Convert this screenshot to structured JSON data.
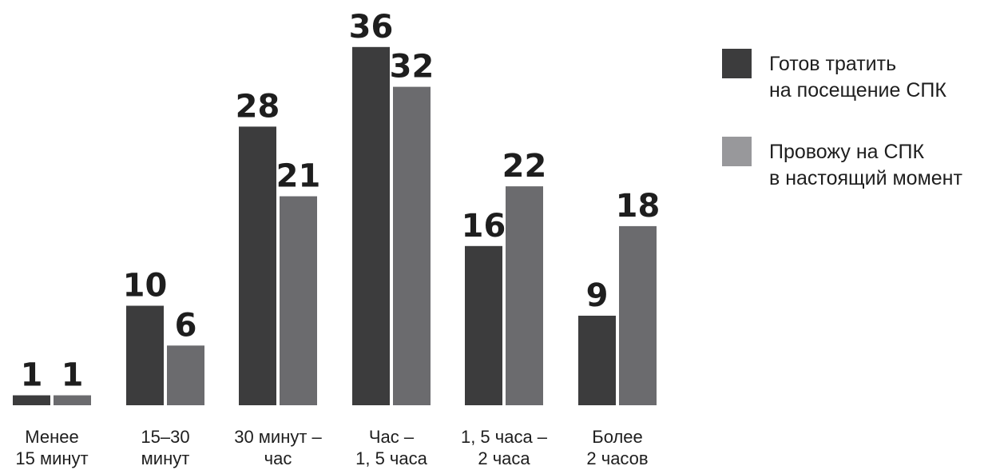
{
  "chart_data": {
    "type": "bar",
    "categories": [
      [
        "Менее",
        "15 минут"
      ],
      [
        "15–30",
        "минут"
      ],
      [
        "30 минут –",
        "час"
      ],
      [
        "Час –",
        "1, 5 часа"
      ],
      [
        "1, 5 часа –",
        "2 часа"
      ],
      [
        "Более",
        "2 часов"
      ]
    ],
    "series": [
      {
        "name": [
          "Готов тратить",
          "на посещение СПК"
        ],
        "color": "#3c3c3d",
        "values": [
          1,
          10,
          28,
          36,
          16,
          9
        ]
      },
      {
        "name": [
          "Провожу на СПК",
          "в настоящий момент"
        ],
        "color": "#6b6b6e",
        "legend_color": "#98989b",
        "values": [
          1,
          6,
          21,
          32,
          22,
          18
        ]
      }
    ],
    "ylim": [
      0,
      36
    ],
    "grid": false,
    "axes_visible": false,
    "data_labels": true,
    "legend_position": "right"
  }
}
